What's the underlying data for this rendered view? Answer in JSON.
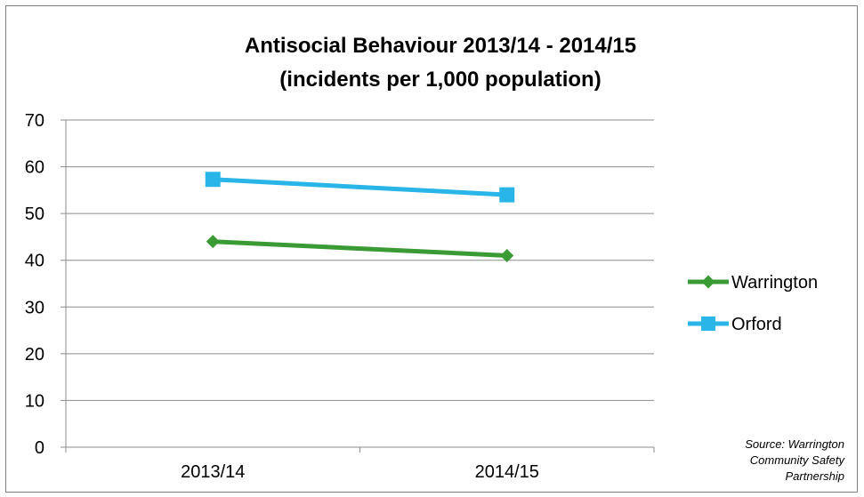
{
  "chart_data": {
    "type": "line",
    "title": "Antisocial Behaviour 2013/14  - 2014/15",
    "subtitle": "(incidents per 1,000 population)",
    "categories": [
      "2013/14",
      "2014/15"
    ],
    "ylim": [
      0,
      70
    ],
    "yticks": [
      0,
      10,
      20,
      30,
      40,
      50,
      60,
      70
    ],
    "grid": true,
    "legend_position": "right",
    "series": [
      {
        "name": "Warrington",
        "values": [
          44,
          41
        ],
        "color": "#3a9b35",
        "marker": "diamond"
      },
      {
        "name": "Orford",
        "values": [
          57.3,
          54
        ],
        "color": "#29b5e8",
        "marker": "square"
      }
    ]
  },
  "source_note": {
    "line1": "Source: Warrington",
    "line2": "Community Safety",
    "line3": "Partnership"
  }
}
